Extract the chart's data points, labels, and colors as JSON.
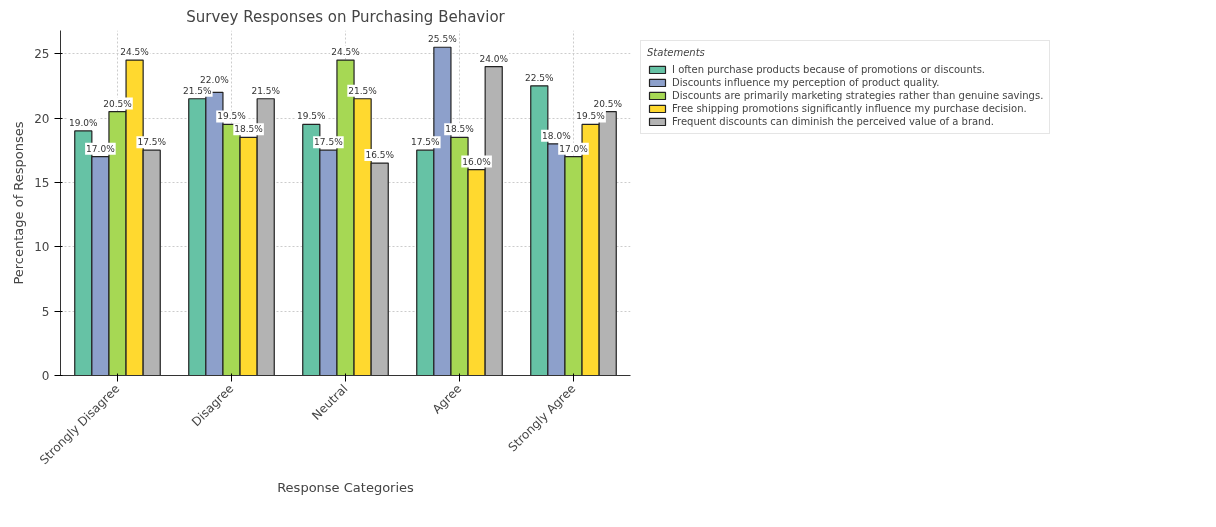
{
  "chart_data": {
    "type": "bar",
    "title": "Survey Responses on Purchasing Behavior",
    "xlabel": "Response Categories",
    "ylabel": "Percentage of Responses",
    "legend_title": "Statements",
    "categories": [
      "Strongly Disagree",
      "Disagree",
      "Neutral",
      "Agree",
      "Strongly Agree"
    ],
    "series": [
      {
        "name": "I often purchase products because of promotions or discounts.",
        "color": "#66c2a5",
        "values": [
          19.0,
          21.5,
          19.5,
          17.5,
          22.5
        ],
        "value_labels": [
          "19.0%",
          "21.5%",
          "19.5%",
          "17.5%",
          "22.5%"
        ]
      },
      {
        "name": "Discounts influence my perception of product quality.",
        "color": "#8da0cb",
        "values": [
          17.0,
          22.0,
          17.5,
          25.5,
          18.0
        ],
        "value_labels": [
          "17.0%",
          "22.0%",
          "17.5%",
          "25.5%",
          "18.0%"
        ]
      },
      {
        "name": "Discounts are primarily marketing strategies rather than genuine savings.",
        "color": "#a6d854",
        "values": [
          20.5,
          19.5,
          24.5,
          18.5,
          17.0
        ],
        "value_labels": [
          "20.5%",
          "19.5%",
          "24.5%",
          "18.5%",
          "17.0%"
        ]
      },
      {
        "name": "Free shipping promotions significantly influence my purchase decision.",
        "color": "#ffd92f",
        "values": [
          24.5,
          18.5,
          21.5,
          16.0,
          19.5
        ],
        "value_labels": [
          "24.5%",
          "18.5%",
          "21.5%",
          "16.0%",
          "19.5%"
        ]
      },
      {
        "name": "Frequent discounts can diminish the perceived value of a brand.",
        "color": "#b3b3b3",
        "values": [
          17.5,
          21.5,
          16.5,
          24.0,
          20.5
        ],
        "value_labels": [
          "17.5%",
          "21.5%",
          "16.5%",
          "24.0%",
          "20.5%"
        ]
      }
    ],
    "ylim": [
      0,
      26.8
    ],
    "yticks": [
      0,
      5,
      10,
      15,
      20,
      25
    ],
    "grid": true,
    "legend": "top right"
  }
}
